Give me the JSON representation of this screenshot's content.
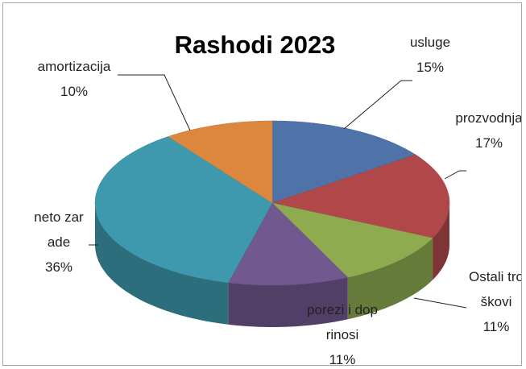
{
  "chart_data": {
    "type": "pie3d",
    "title": "Rashodi 2023",
    "categories": [
      "usluge",
      "prozvodnja",
      "Ostali troškovi",
      "porezi i doprinosi",
      "neto zarade",
      "amortizacija"
    ],
    "values": [
      15,
      17,
      11,
      11,
      36,
      10
    ],
    "value_labels": [
      "15%",
      "17%",
      "11%",
      "11%",
      "36%",
      "10%"
    ],
    "colors": [
      "#4f72a8",
      "#b0484a",
      "#8eab4f",
      "#71588f",
      "#3e99ae",
      "#db873d"
    ]
  }
}
